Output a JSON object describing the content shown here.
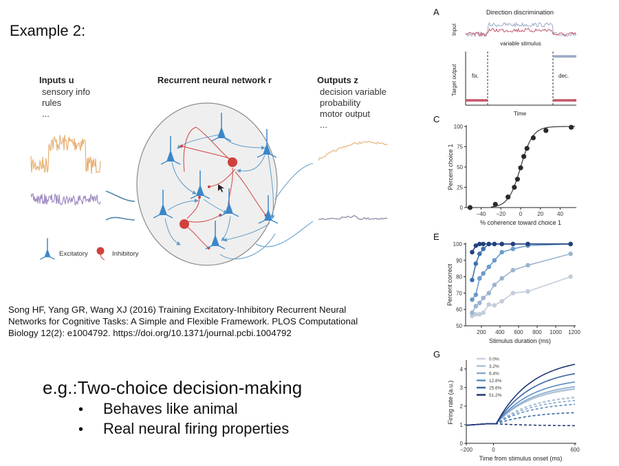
{
  "slide": {
    "title": "Example 2:",
    "citation_lines": [
      "Song HF, Yang GR, Wang XJ (2016) Training Excitatory-Inhibitory Recurrent Neural",
      "Networks for Cognitive Tasks: A Simple and Flexible Framework. PLOS Computational",
      "Biology 12(2): e1004792. https://doi.org/10.1371/journal.pcbi.1004792"
    ],
    "heading": "e.g.:Two-choice decision-making",
    "bullets": [
      "Behaves like animal",
      "Real neural firing properties"
    ],
    "bullet_symbol": "•"
  },
  "diagram": {
    "inputs_title": "Inputs u",
    "inputs_items": [
      "sensory info",
      "rules",
      "..."
    ],
    "network_title": "Recurrent neural network r",
    "outputs_title": "Outputs z",
    "outputs_items": [
      "decision variable",
      "probability",
      "motor output",
      "..."
    ],
    "legend": {
      "excitatory": "Excitatory",
      "inhibitory": "Inhibitory"
    },
    "colors": {
      "excitatory": "#3b87c9",
      "inhibitory": "#d0413d",
      "input1": "#e8b070",
      "input2": "#a28ec4",
      "output1": "#e6b880",
      "output2": "#8c8fa6"
    }
  },
  "panel_a": {
    "label": "A",
    "title": "Direction discrimination",
    "input_label": "Input",
    "stimulus_label": "variable stimulus",
    "target_label": "Target output",
    "fix_label": "fix.",
    "dec_label": "dec.",
    "xlabel": "Time",
    "colors": {
      "choice1": "#c5546a",
      "choice2": "#9aa9c4"
    }
  },
  "chart_data": [
    {
      "id": "C",
      "type": "scatter",
      "label": "C",
      "xlabel": "% coherence toward choice 1",
      "ylabel": "Percent choice 1",
      "xlim": [
        -55,
        55
      ],
      "ylim": [
        0,
        100
      ],
      "xticks": [
        -40,
        -20,
        0,
        20,
        40
      ],
      "yticks": [
        0,
        25,
        50,
        75,
        100
      ],
      "x": [
        -51.2,
        -25.6,
        -12.8,
        -6.4,
        -3.2,
        0,
        3.2,
        6.4,
        12.8,
        25.6,
        51.2
      ],
      "y": [
        0,
        4,
        13,
        25,
        35,
        49,
        63,
        73,
        86,
        95,
        99
      ],
      "fit": "sigmoid"
    },
    {
      "id": "E",
      "type": "line",
      "label": "E",
      "xlabel": "Stimulus duration (ms)",
      "ylabel": "Percent correct",
      "xlim": [
        30,
        1200
      ],
      "ylim": [
        50,
        100
      ],
      "xticks": [
        200,
        400,
        600,
        800,
        1000,
        1200
      ],
      "yticks": [
        50,
        60,
        70,
        80,
        90,
        100
      ],
      "x": [
        100,
        140,
        180,
        220,
        280,
        340,
        420,
        540,
        700,
        1160
      ],
      "series": [
        {
          "color": "#c3ccd8",
          "values": [
            56,
            57,
            57,
            58,
            63,
            62.5,
            65,
            70,
            71,
            80
          ]
        },
        {
          "color": "#9bb4d0",
          "values": [
            58,
            62,
            64,
            67,
            70,
            75,
            79,
            84,
            87,
            94
          ]
        },
        {
          "color": "#6b9cc8",
          "values": [
            66,
            69,
            79,
            82,
            86,
            90,
            95,
            97,
            99,
            100
          ]
        },
        {
          "color": "#3f6fae",
          "values": [
            78,
            88,
            94,
            97,
            100,
            100,
            100,
            100,
            100,
            100
          ]
        },
        {
          "color": "#22417e",
          "values": [
            95,
            99,
            100,
            100,
            100,
            100,
            100,
            100,
            100,
            100
          ]
        }
      ]
    },
    {
      "id": "G",
      "type": "line",
      "label": "G",
      "xlabel": "Time from stimulus onset (ms)",
      "ylabel": "Firing rate (a.u.)",
      "xlim": [
        -200,
        600
      ],
      "ylim": [
        0,
        4.4
      ],
      "xticks": [
        -200,
        0,
        600
      ],
      "yticks": [
        0,
        1,
        2,
        3,
        4
      ],
      "legend_position": "top-left",
      "series": [
        {
          "name": "0.0%",
          "color": "#c9d3df",
          "solid_end": 2.9,
          "dashed_end": 2.5
        },
        {
          "name": "3.2%",
          "color": "#a9c0d8",
          "solid_end": 2.95,
          "dashed_end": 2.45
        },
        {
          "name": "6.4%",
          "color": "#86a8cc",
          "solid_end": 3.05,
          "dashed_end": 2.3
        },
        {
          "name": "12.8%",
          "color": "#5a8dbf",
          "solid_end": 3.3,
          "dashed_end": 2.1
        },
        {
          "name": "25.6%",
          "color": "#3b64a5",
          "solid_end": 3.75,
          "dashed_end": 1.65
        },
        {
          "name": "51.2%",
          "color": "#1d3673",
          "solid_end": 4.25,
          "dashed_end": 0.95
        }
      ]
    }
  ]
}
